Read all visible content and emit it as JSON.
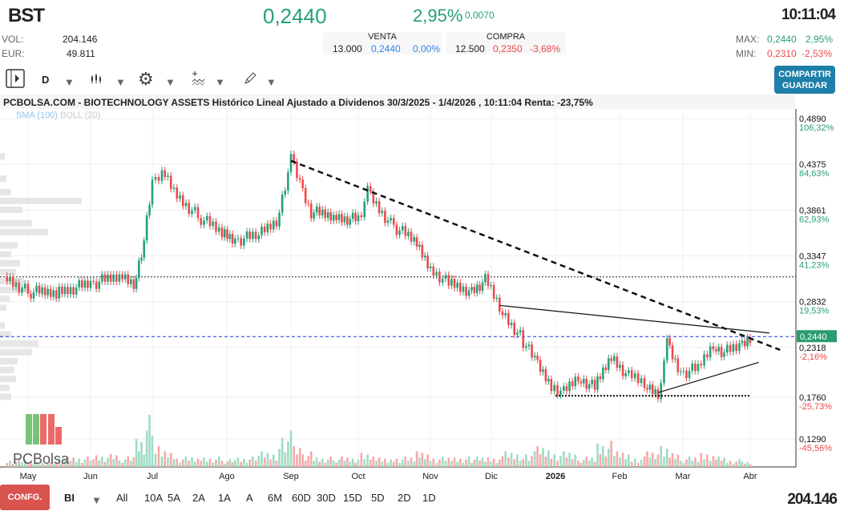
{
  "header": {
    "symbol": "BST",
    "price": "0,2440",
    "change_pct": "2,95%",
    "change_abs": "0,0070",
    "time": "10:11:04"
  },
  "info": {
    "vol_label": "VOL:",
    "vol": "204.146",
    "eur_label": "EUR:",
    "eur": "49.811"
  },
  "venta": {
    "label": "VENTA",
    "qty": "13.000",
    "price": "0,2440",
    "pct": "0,00%"
  },
  "compra": {
    "label": "COMPRA",
    "qty": "12.500",
    "price": "0,2350",
    "pct": "-3,68%"
  },
  "range": {
    "max_label": "MAX:",
    "max": "0,2440",
    "max_pct": "2,95%",
    "min_label": "MIN:",
    "min": "0,2310",
    "min_pct": "-2,53%"
  },
  "toolbar": {
    "period": "D",
    "share_line1": "COMPARTIR",
    "share_line2": "GUARDAR",
    "icons": [
      "sidebar-toggle-icon",
      "candles-icon",
      "gear-icon",
      "indicators-icon",
      "pencil-icon"
    ]
  },
  "colors": {
    "up": "#26a07a",
    "down": "#f0484a",
    "accent": "#1e7fa8",
    "last_price": "#2a9d6f"
  },
  "chart_data": {
    "type": "candlestick",
    "title": "PCBOLSA.COM - BIOTECHNOLOGY ASSETS Histórico Lineal Ajustado a Dividenos 30/3/2025 - 1/4/2026 , 10:11:04 Renta: -23,75%",
    "indicators": [
      "SMA (100)",
      "BOLL (20)"
    ],
    "x_ticks": [
      "May",
      "Jun",
      "Jul",
      "Ago",
      "Sep",
      "Oct",
      "Nov",
      "Dic",
      "2026",
      "Feb",
      "Mar",
      "Abr"
    ],
    "y_ticks": [
      {
        "v": "0,4890",
        "p": "106,32%"
      },
      {
        "v": "0,4375",
        "p": "84,63%"
      },
      {
        "v": "0,3861",
        "p": "62,93%"
      },
      {
        "v": "0,3347",
        "p": "41,23%"
      },
      {
        "v": "0,2832",
        "p": "19,53%"
      },
      {
        "v": "0,2318",
        "p": "-2,16%"
      },
      {
        "v": "0,1760",
        "p": "-25,73%"
      },
      {
        "v": "0,1290",
        "p": "-45,56%"
      }
    ],
    "y_tick_values": [
      0.489,
      0.4375,
      0.3861,
      0.3347,
      0.2832,
      0.2318,
      0.176,
      0.129
    ],
    "ylim": [
      0.105,
      0.492
    ],
    "last_price": "0,2440",
    "last_price_value": 0.244,
    "closes": [
      [
        "2025-04-01",
        0.312
      ],
      [
        "2025-05-01",
        0.294
      ],
      [
        "2025-05-15",
        0.294
      ],
      [
        "2025-06-01",
        0.303
      ],
      [
        "2025-06-15",
        0.312
      ],
      [
        "2025-06-22",
        0.303
      ],
      [
        "2025-06-27",
        0.352
      ],
      [
        "2025-07-01",
        0.415
      ],
      [
        "2025-07-05",
        0.429
      ],
      [
        "2025-07-10",
        0.406
      ],
      [
        "2025-07-20",
        0.379
      ],
      [
        "2025-07-30",
        0.361
      ],
      [
        "2025-08-05",
        0.352
      ],
      [
        "2025-08-15",
        0.357
      ],
      [
        "2025-08-25",
        0.375
      ],
      [
        "2025-09-01",
        0.442
      ],
      [
        "2025-09-05",
        0.415
      ],
      [
        "2025-09-10",
        0.384
      ],
      [
        "2025-09-20",
        0.379
      ],
      [
        "2025-10-01",
        0.375
      ],
      [
        "2025-10-05",
        0.406
      ],
      [
        "2025-10-15",
        0.37
      ],
      [
        "2025-10-25",
        0.352
      ],
      [
        "2025-11-01",
        0.321
      ],
      [
        "2025-11-10",
        0.303
      ],
      [
        "2025-11-20",
        0.294
      ],
      [
        "2025-11-28",
        0.307
      ],
      [
        "2025-12-05",
        0.276
      ],
      [
        "2025-12-15",
        0.244
      ],
      [
        "2025-12-22",
        0.217
      ],
      [
        "2025-12-30",
        0.19
      ],
      [
        "2026-01-05",
        0.181
      ],
      [
        "2026-01-12",
        0.199
      ],
      [
        "2026-01-20",
        0.186
      ],
      [
        "2026-01-28",
        0.222
      ],
      [
        "2026-02-05",
        0.199
      ],
      [
        "2026-02-12",
        0.19
      ],
      [
        "2026-02-18",
        0.181
      ],
      [
        "2026-02-22",
        0.235
      ],
      [
        "2026-02-28",
        0.203
      ],
      [
        "2026-03-08",
        0.208
      ],
      [
        "2026-03-15",
        0.235
      ],
      [
        "2026-03-20",
        0.226
      ],
      [
        "2026-03-27",
        0.233
      ],
      [
        "2026-04-01",
        0.244
      ]
    ],
    "volume_relative": [
      0.1,
      0.15,
      0.1,
      0.2,
      0.25,
      0.2,
      0.6,
      1,
      0.5,
      0.3,
      0.2,
      0.2,
      0.15,
      0.2,
      0.3,
      0.7,
      0.4,
      0.3,
      0.2,
      0.2,
      0.3,
      0.2,
      0.2,
      0.3,
      0.2,
      0.2,
      0.2,
      0.2,
      0.3,
      0.3,
      0.4,
      0.3,
      0.3,
      0.2,
      0.5,
      0.3,
      0.2,
      0.3,
      0.5,
      0.3,
      0.2,
      0.3,
      0.2,
      0.15,
      0.1
    ],
    "trendlines": [
      {
        "style": "dashed",
        "from": [
          "2025-09-01",
          0.4415
        ],
        "to": [
          "2026-04-15",
          0.229
        ]
      },
      {
        "style": "solid",
        "from": [
          "2025-12-05",
          0.279
        ],
        "to": [
          "2026-04-10",
          0.248
        ]
      },
      {
        "style": "solid",
        "from": [
          "2026-02-18",
          0.181
        ],
        "to": [
          "2026-04-05",
          0.215
        ]
      },
      {
        "style": "dotted",
        "from": [
          "2026-01-01",
          0.1775
        ],
        "to": [
          "2026-04-01",
          0.1775
        ]
      }
    ],
    "horizontal_line": 0.311,
    "grid": true
  },
  "bottom": {
    "config": "CONFG.",
    "scale": "BI",
    "ranges": [
      "All",
      "10A",
      "5A",
      "2A",
      "1A",
      "A",
      "6M",
      "60D",
      "30D",
      "15D",
      "5D",
      "2D",
      "1D"
    ],
    "volume": "204.146"
  }
}
